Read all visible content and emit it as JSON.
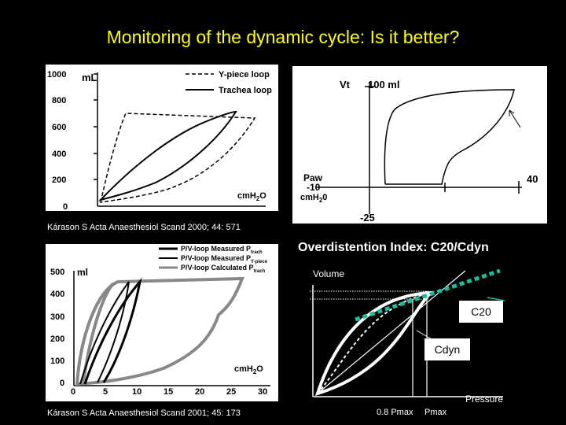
{
  "slide": {
    "title": "Monitoring of the dynamic cycle: Is it better?"
  },
  "chart1": {
    "y_unit": "mL",
    "y_ticks": [
      "1000",
      "800",
      "600",
      "400",
      "200",
      "0"
    ],
    "x_unit_main": "cmH",
    "x_unit_sub": "2",
    "x_unit_end": "O",
    "legend": [
      "Y-piece loop",
      "Trachea loop"
    ],
    "citation": "Kárason S   Acta Anaesthesiol Scand 2000; 44: 571"
  },
  "chart2": {
    "y_label": "Vt",
    "y_value": "100 ml",
    "paw_label": "Paw",
    "paw_low": "-10",
    "paw_unit": "cmH",
    "paw_unit_sub": "2",
    "paw_unit_end": "0",
    "bottom_value": "-25",
    "right_value": "40"
  },
  "chart3": {
    "y_unit": "ml",
    "y_ticks": [
      "500",
      "400",
      "300",
      "200",
      "100",
      "0"
    ],
    "x_ticks": [
      "0",
      "5",
      "10",
      "15",
      "20",
      "25",
      "30"
    ],
    "x_unit_main": "cmH",
    "x_unit_sub": "2",
    "x_unit_end": "O",
    "legend": [
      {
        "text": "P/V-loop Measured P",
        "sub": "trach"
      },
      {
        "text": "P/V-loop Measured P",
        "sub": "Y-piece"
      },
      {
        "text": "P/V-loop Calculated P",
        "sub": "trach"
      }
    ],
    "citation": "Kárason S   Acta Anaesthesiol Scand 2001; 45: 173"
  },
  "diagram": {
    "title": "Overdistention Index: C20/Cdyn",
    "volume_label": "Volume",
    "pressure_label": "Pressure",
    "c20_label": "C20",
    "cdyn_label": "Cdyn",
    "x_label_1": "0.8 Pmax",
    "x_label_2": "Pmax",
    "c20_color": "#1abc9c"
  }
}
